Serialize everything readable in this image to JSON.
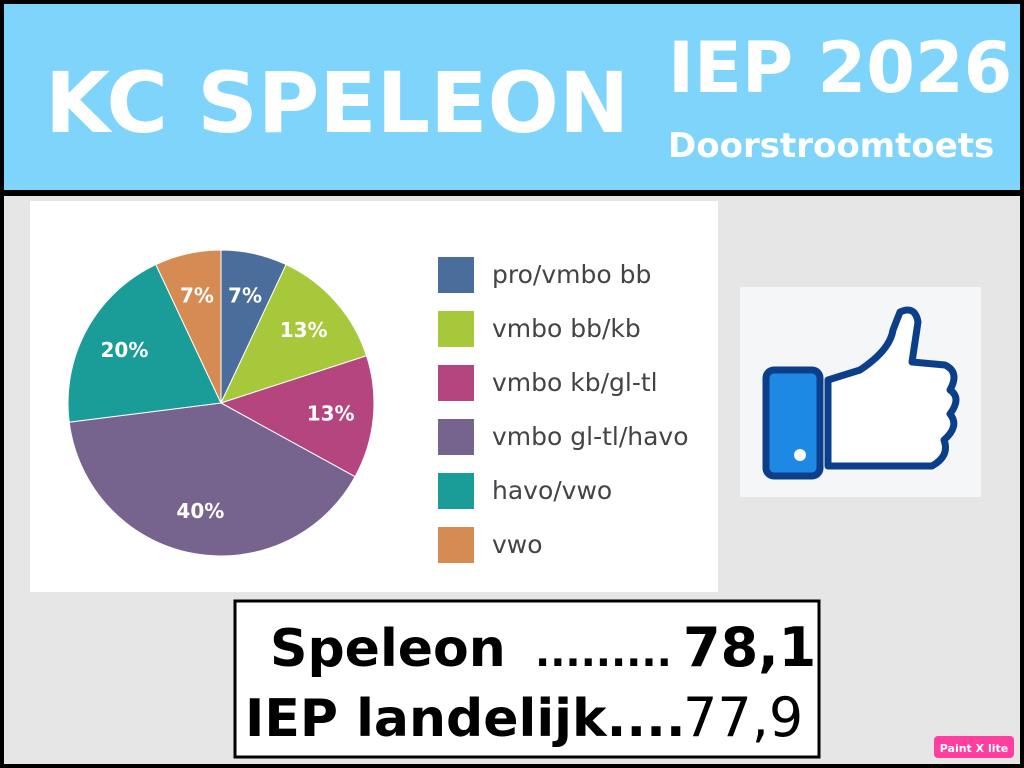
{
  "header": {
    "title": "KC SPELEON",
    "exam": "IEP 2026",
    "subtitle": "Doorstroomtoets"
  },
  "chart_data": {
    "type": "pie",
    "categories": [
      "pro/vmbo bb",
      "vmbo bb/kb",
      "vmbo kb/gl-tl",
      "vmbo gl-tl/havo",
      "havo/vwo",
      "vwo"
    ],
    "values": [
      7,
      13,
      13,
      40,
      20,
      7
    ],
    "value_labels": [
      "7%",
      "13%",
      "13%",
      "40%",
      "20%",
      "7%"
    ],
    "colors": [
      "#4a6d9c",
      "#a8c83c",
      "#b5457e",
      "#76648f",
      "#1a9c98",
      "#d68b52"
    ],
    "legend": "right"
  },
  "scores": [
    {
      "label": "Speleon",
      "dots": ".........",
      "score": "78,1"
    },
    {
      "label": "IEP landelijk....",
      "score": "77,9"
    }
  ],
  "watermark": "Paint X lite"
}
